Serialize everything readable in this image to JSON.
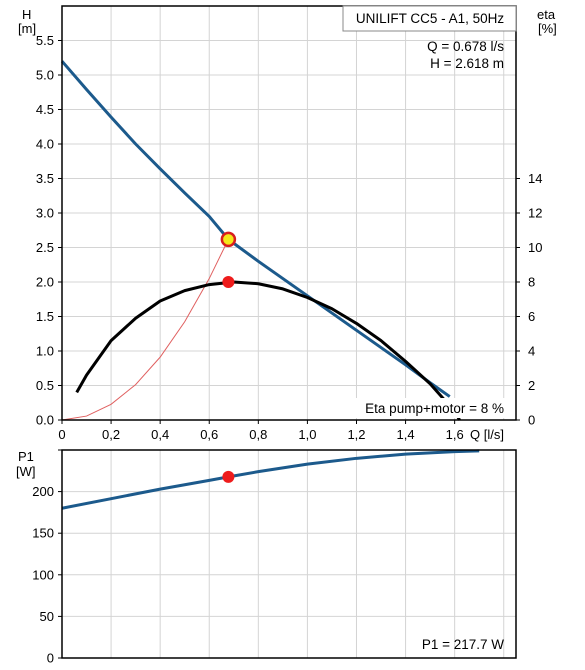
{
  "chart_data": [
    {
      "type": "line",
      "title": "UNILIFT CC5 - A1, 50Hz",
      "duty_point": {
        "q_text": "Q = 0.678 l/s",
        "h_text": "H = 2.618 m",
        "q": 0.678,
        "h": 2.618,
        "eta": 8
      },
      "eta_note": "Eta pump+motor = 8 %",
      "xlabel": "Q [l/s]",
      "ylabel_left": [
        "H",
        "[m]"
      ],
      "ylabel_right": [
        "eta",
        "[%]"
      ],
      "xlim": [
        0,
        1.85
      ],
      "ylim_left": [
        0,
        6.0
      ],
      "ylim_right": [
        0,
        24
      ],
      "x_ticks": [
        "0",
        "0,2",
        "0,4",
        "0,6",
        "0,8",
        "1,0",
        "1,2",
        "1,4",
        "1,6"
      ],
      "x_tick_values": [
        0,
        0.2,
        0.4,
        0.6,
        0.8,
        1.0,
        1.2,
        1.4,
        1.6
      ],
      "y_ticks_left": [
        "0.0",
        "0.5",
        "1.0",
        "1.5",
        "2.0",
        "2.5",
        "3.0",
        "3.5",
        "4.0",
        "4.5",
        "5.0",
        "5.5"
      ],
      "y_tick_values_left": [
        0,
        0.5,
        1.0,
        1.5,
        2.0,
        2.5,
        3.0,
        3.5,
        4.0,
        4.5,
        5.0,
        5.5
      ],
      "y_ticks_right": [
        "0",
        "2",
        "4",
        "6",
        "8",
        "10",
        "12",
        "14"
      ],
      "y_tick_values_right": [
        0,
        2,
        4,
        6,
        8,
        10,
        12,
        14
      ],
      "grid": true,
      "series": [
        {
          "role": "head",
          "axis": "left",
          "color": "#1c5a8c",
          "x": [
            0,
            0.1,
            0.2,
            0.3,
            0.4,
            0.5,
            0.6,
            0.678,
            0.8,
            0.9,
            1.0,
            1.1,
            1.2,
            1.3,
            1.4,
            1.5,
            1.58
          ],
          "y": [
            5.2,
            4.79,
            4.39,
            4.0,
            3.64,
            3.29,
            2.95,
            2.618,
            2.3,
            2.05,
            1.8,
            1.55,
            1.3,
            1.05,
            0.8,
            0.54,
            0.34
          ]
        },
        {
          "role": "efficiency",
          "axis": "right",
          "color": "#000000",
          "x": [
            0.06,
            0.1,
            0.2,
            0.3,
            0.4,
            0.5,
            0.6,
            0.7,
            0.8,
            0.9,
            1.0,
            1.1,
            1.2,
            1.3,
            1.4,
            1.5,
            1.6,
            1.62
          ],
          "y": [
            1.6,
            2.6,
            4.6,
            5.9,
            6.9,
            7.5,
            7.85,
            8.0,
            7.9,
            7.6,
            7.1,
            6.45,
            5.6,
            4.6,
            3.4,
            2.1,
            0.5,
            0
          ]
        },
        {
          "role": "system-curve",
          "axis": "left",
          "color": "#e06060",
          "x": [
            0,
            0.1,
            0.2,
            0.3,
            0.4,
            0.5,
            0.6,
            0.678
          ],
          "y": [
            0,
            0.057,
            0.228,
            0.513,
            0.911,
            1.424,
            2.05,
            2.618
          ]
        }
      ]
    },
    {
      "type": "line",
      "ylabel": [
        "P1",
        "[W]"
      ],
      "power_note": "P1 = 217.7 W",
      "xlim": [
        0,
        1.85
      ],
      "ylim": [
        0,
        250
      ],
      "y_ticks": [
        "0",
        "50",
        "100",
        "150",
        "200"
      ],
      "y_tick_values": [
        0,
        50,
        100,
        150,
        200
      ],
      "grid": true,
      "duty_point": {
        "q": 0.678,
        "p1": 217.7
      },
      "series": [
        {
          "role": "power",
          "color": "#1c5a8c",
          "x": [
            0,
            0.2,
            0.4,
            0.6,
            0.678,
            0.8,
            1.0,
            1.2,
            1.4,
            1.6,
            1.7
          ],
          "y": [
            180,
            191.5,
            203,
            213.5,
            217.7,
            224,
            233,
            240,
            245,
            248,
            249
          ]
        }
      ]
    }
  ]
}
